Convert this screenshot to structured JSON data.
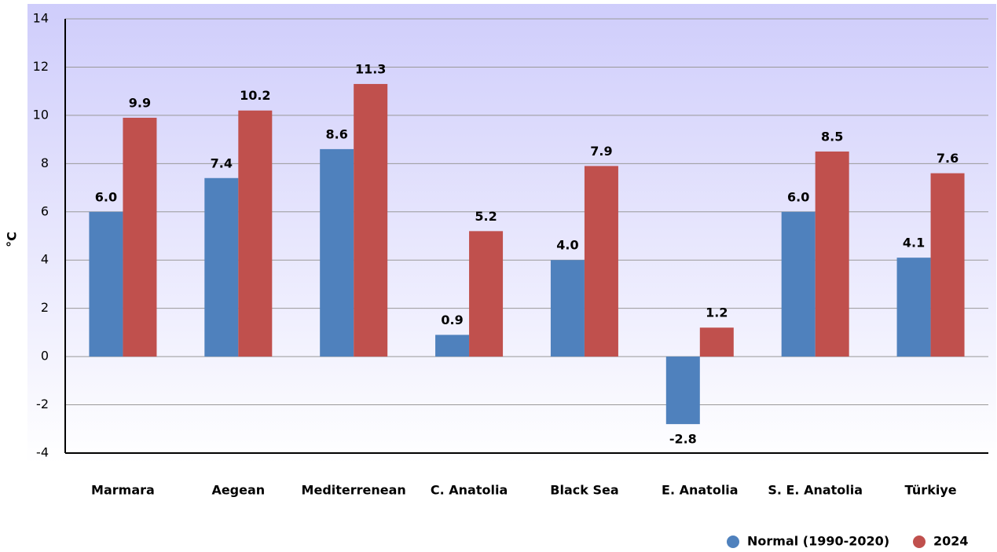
{
  "chart_data": {
    "type": "bar",
    "y_label": "°C",
    "categories": [
      "Marmara",
      "Aegean",
      "Mediterrenean",
      "C. Anatolia",
      "Black Sea",
      "E. Anatolia",
      "S. E. Anatolia",
      "Türkiye"
    ],
    "series": [
      {
        "name": "Normal (1990-2020)",
        "color": "#4f81bd",
        "values": [
          6.0,
          7.4,
          8.6,
          0.9,
          4.0,
          -2.8,
          6.0,
          4.1
        ],
        "value_labels": [
          "6.0",
          "7.4",
          "8.6",
          "0.9",
          "4.0",
          "-2.8",
          "6.0",
          "4.1"
        ]
      },
      {
        "name": "2024",
        "color": "#c0504d",
        "values": [
          9.9,
          10.2,
          11.3,
          5.2,
          7.9,
          1.2,
          8.5,
          7.6
        ],
        "value_labels": [
          "9.9",
          "10.2",
          "11.3",
          "5.2",
          "7.9",
          "1.2",
          "8.5",
          "7.6"
        ]
      }
    ],
    "ylim": [
      -4,
      14
    ],
    "yticks": [
      -4,
      -2,
      0,
      2,
      4,
      6,
      8,
      10,
      12,
      14
    ],
    "grid": true,
    "legend": "bottom-right"
  }
}
